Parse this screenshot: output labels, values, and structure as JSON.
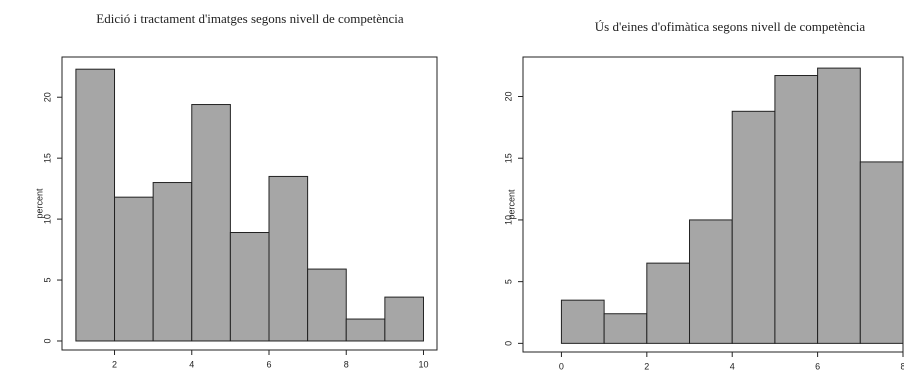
{
  "chart_data": [
    {
      "type": "histogram",
      "title": "Edició i tractament d'imatges segons nivell de competència",
      "ylabel": "percent",
      "bins": [
        1,
        2,
        3,
        4,
        5,
        6,
        7,
        8,
        9,
        10
      ],
      "values": [
        22.3,
        11.8,
        13.0,
        19.4,
        8.9,
        13.5,
        5.9,
        1.8,
        3.6
      ],
      "color": "#a6a6a6",
      "xlim": [
        0.64,
        10.35
      ],
      "xticks": [
        2,
        4,
        6,
        8,
        10
      ],
      "ylim": [
        -0.74,
        23.3
      ],
      "yticks": [
        0,
        5,
        10,
        15,
        20
      ]
    },
    {
      "type": "histogram",
      "title": "Ús d'eines d'ofimàtica segons nivell de competència",
      "ylabel": "percent",
      "bins": [
        0,
        1,
        2,
        3,
        4,
        5,
        6,
        7,
        8
      ],
      "values": [
        3.5,
        2.4,
        6.5,
        10.0,
        18.8,
        21.7,
        22.3,
        14.7
      ],
      "color": "#a6a6a6",
      "xlim": [
        -0.9,
        8.0
      ],
      "xticks": [
        0,
        2,
        4,
        6,
        8
      ],
      "ylim": [
        -0.7,
        23.2
      ],
      "yticks": [
        0,
        5,
        10,
        15,
        20
      ]
    }
  ]
}
